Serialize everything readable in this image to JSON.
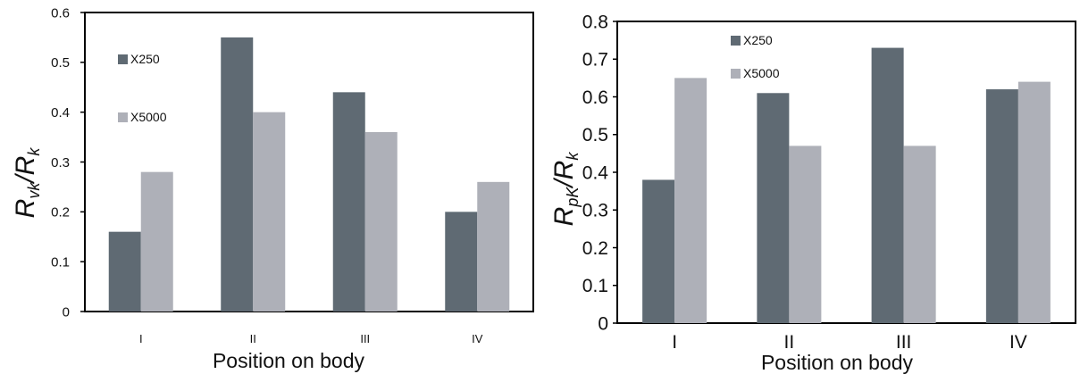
{
  "chart_data": [
    {
      "type": "bar",
      "categories": [
        "I",
        "II",
        "III",
        "IV"
      ],
      "series": [
        {
          "name": "X250",
          "values": [
            0.16,
            0.55,
            0.44,
            0.2
          ]
        },
        {
          "name": "X5000",
          "values": [
            0.28,
            0.4,
            0.36,
            0.26
          ]
        }
      ],
      "xlabel": "Position on body",
      "ylabel": {
        "main": "R",
        "sub1": "vk",
        "sep": "/R",
        "sub2": "k"
      },
      "ylim": [
        0,
        0.6
      ],
      "yticks": [
        "0",
        "0.1",
        "0.2",
        "0.3",
        "0.4",
        "0.5",
        "0.6"
      ],
      "legend_position": "top-left",
      "grid": false,
      "colors": {
        "X250": "#5f6a73",
        "X5000": "#aeb0b8"
      }
    },
    {
      "type": "bar",
      "categories": [
        "I",
        "II",
        "III",
        "IV"
      ],
      "series": [
        {
          "name": "X250",
          "values": [
            0.38,
            0.61,
            0.73,
            0.62
          ]
        },
        {
          "name": "X5000",
          "values": [
            0.65,
            0.47,
            0.47,
            0.64
          ]
        }
      ],
      "xlabel": "Position on body",
      "ylabel": {
        "main": "R",
        "sub1": "pK",
        "sep": "/R",
        "sub2": "k"
      },
      "ylim": [
        0,
        0.8
      ],
      "yticks": [
        "0",
        "0.1",
        "0.2",
        "0.3",
        "0.4",
        "0.5",
        "0.6",
        "0.7",
        "0.8"
      ],
      "legend_position": "top-left",
      "grid": false,
      "colors": {
        "X250": "#5f6a73",
        "X5000": "#aeb0b8"
      }
    }
  ]
}
